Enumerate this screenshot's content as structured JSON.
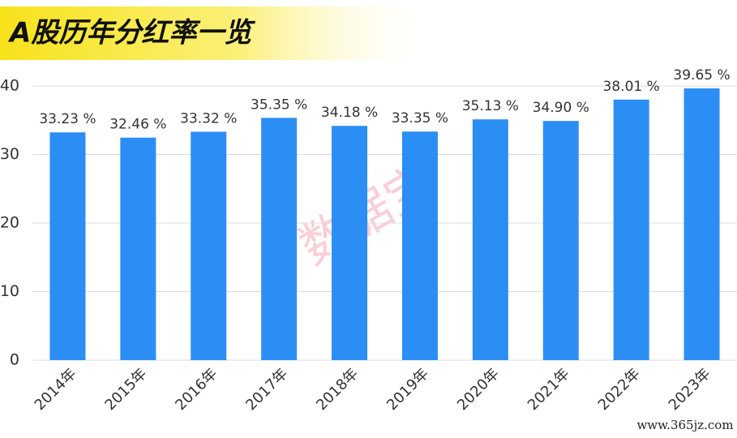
{
  "chart_data": {
    "type": "bar",
    "title": "A股历年分红率一览",
    "categories": [
      "2014年",
      "2015年",
      "2016年",
      "2017年",
      "2018年",
      "2019年",
      "2020年",
      "2021年",
      "2022年",
      "2023年"
    ],
    "values": [
      33.23,
      32.46,
      33.32,
      35.35,
      34.18,
      33.35,
      35.13,
      34.9,
      38.01,
      39.65
    ],
    "value_labels": [
      "33.23 %",
      "32.46 %",
      "33.32 %",
      "35.35 %",
      "34.18 %",
      "33.35 %",
      "35.13 %",
      "34.90 %",
      "38.01 %",
      "39.65 %"
    ],
    "color": "#2b8ef5",
    "ylim": [
      0,
      40
    ],
    "yticks": [
      0,
      10,
      20,
      30,
      40
    ],
    "grid": true,
    "watermark": "数据宝",
    "footer": "www.365jz.com"
  }
}
